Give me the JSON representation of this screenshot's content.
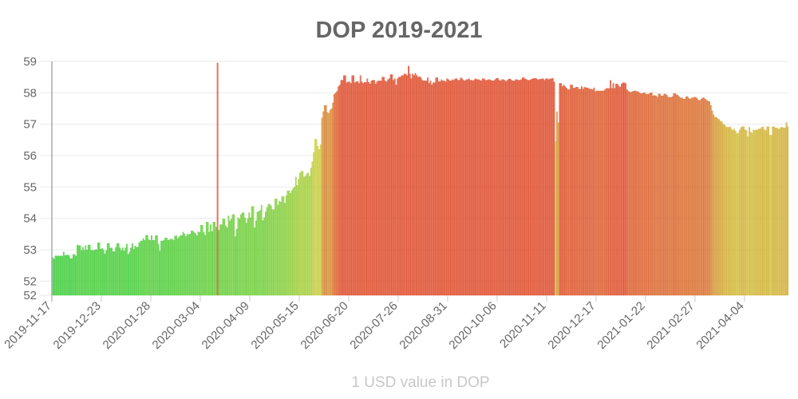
{
  "chart_data": {
    "type": "bar",
    "title": "DOP 2019-2021",
    "xlabel": "1 USD value in DOP",
    "ylabel": "",
    "ylim": [
      51.55,
      59
    ],
    "grid": true,
    "legend": "none",
    "y_tick_values": [
      59,
      58,
      57,
      56,
      55,
      54,
      53,
      52
    ],
    "y_min_label": "52",
    "x_start": "2019-11-17",
    "x_tick_labels": [
      "2019-11-17",
      "2019-12-23",
      "2020-01-28",
      "2020-03-04",
      "2020-04-09",
      "2020-05-15",
      "2020-06-20",
      "2020-07-26",
      "2020-08-31",
      "2020-10-06",
      "2020-11-11",
      "2020-12-17",
      "2021-01-22",
      "2021-02-27",
      "2021-04-04"
    ],
    "colors": {
      "low": "#33cc33",
      "mid": "#cccc33",
      "high": "#dd4422"
    },
    "values": [
      52.75,
      52.7,
      52.8,
      52.8,
      52.8,
      52.8,
      52.8,
      52.8,
      52.93,
      52.82,
      52.83,
      52.83,
      52.82,
      52.72,
      52.72,
      52.85,
      52.85,
      52.8,
      53.15,
      53.13,
      53.13,
      52.98,
      53.08,
      52.98,
      53.13,
      52.99,
      53.15,
      53.15,
      52.98,
      52.98,
      52.98,
      53.0,
      53.0,
      53.22,
      53.22,
      53.02,
      53.04,
      53.0,
      52.87,
      52.98,
      53.2,
      53.2,
      53.05,
      53.06,
      52.94,
      52.94,
      53.08,
      53.2,
      53.2,
      53.06,
      52.98,
      53.06,
      52.96,
      53.06,
      53.18,
      52.85,
      52.93,
      53.06,
      53.2,
      53.01,
      53.12,
      53.08,
      53.08,
      53.22,
      53.28,
      53.28,
      53.36,
      53.3,
      53.46,
      53.46,
      53.32,
      53.3,
      53.45,
      53.3,
      53.3,
      53.45,
      53.45,
      53.18,
      52.96,
      53.28,
      53.28,
      53.3,
      53.38,
      53.38,
      53.3,
      53.32,
      53.34,
      53.34,
      53.3,
      53.44,
      53.44,
      53.35,
      53.4,
      53.45,
      53.45,
      53.56,
      53.5,
      53.42,
      53.5,
      53.48,
      53.5,
      53.6,
      53.6,
      53.55,
      53.52,
      53.45,
      53.58,
      53.55,
      53.78,
      53.78,
      53.55,
      53.46,
      53.88,
      53.88,
      53.56,
      53.8,
      53.58,
      53.88,
      53.88,
      53.72,
      58.95,
      53.62,
      53.8,
      53.8,
      53.98,
      53.98,
      53.76,
      53.7,
      54.08,
      53.92,
      53.98,
      54.12,
      54.12,
      53.42,
      53.66,
      54.02,
      53.98,
      54.12,
      54.18,
      54.18,
      54.02,
      53.85,
      54.0,
      54.18,
      54.02,
      54.38,
      54.38,
      53.7,
      53.92,
      54.2,
      54.22,
      54.25,
      54.42,
      53.93,
      54.02,
      54.2,
      54.35,
      54.45,
      54.45,
      54.4,
      54.28,
      54.28,
      54.62,
      54.62,
      54.42,
      54.55,
      54.52,
      54.7,
      54.7,
      54.48,
      54.72,
      54.88,
      54.88,
      54.8,
      54.88,
      54.95,
      55.0,
      55.32,
      55.05,
      55.25,
      55.45,
      55.5,
      55.5,
      55.32,
      55.35,
      55.42,
      55.45,
      55.35,
      55.6,
      55.8,
      56.1,
      56.52,
      56.52,
      56.3,
      56.2,
      56.35,
      57.2,
      57.4,
      57.6,
      57.6,
      57.38,
      57.35,
      57.45,
      57.5,
      57.68,
      57.95,
      58.0,
      58.05,
      58.2,
      58.25,
      58.4,
      58.4,
      58.55,
      58.55,
      58.32,
      58.35,
      58.35,
      58.3,
      58.55,
      58.55,
      58.32,
      58.36,
      58.36,
      58.3,
      58.55,
      58.35,
      58.3,
      58.33,
      58.33,
      58.45,
      58.33,
      58.28,
      58.38,
      58.4,
      58.4,
      58.28,
      58.35,
      58.38,
      58.38,
      58.38,
      58.5,
      58.5,
      58.38,
      58.35,
      58.42,
      58.45,
      58.58,
      58.58,
      58.4,
      58.45,
      58.25,
      58.45,
      58.5,
      58.5,
      58.55,
      58.55,
      58.6,
      58.6,
      58.55,
      58.85,
      58.6,
      58.45,
      58.6,
      58.55,
      58.62,
      58.55,
      58.5,
      58.52,
      58.48,
      58.4,
      58.38,
      58.38,
      58.38,
      58.48,
      58.3,
      58.38,
      58.25,
      58.32,
      58.32,
      58.48,
      58.48,
      58.36,
      58.36,
      58.42,
      58.38,
      58.38,
      58.35,
      58.45,
      58.42,
      58.38,
      58.38,
      58.42,
      58.4,
      58.45,
      58.45,
      58.4,
      58.4,
      58.48,
      58.45,
      58.4,
      58.38,
      58.42,
      58.42,
      58.45,
      58.4,
      58.4,
      58.38,
      58.42,
      58.45,
      58.42,
      58.42,
      58.4,
      58.38,
      58.45,
      58.45,
      58.4,
      58.4,
      58.42,
      58.42,
      58.4,
      58.38,
      58.38,
      58.42,
      58.46,
      58.46,
      58.4,
      58.38,
      58.42,
      58.42,
      58.4,
      58.36,
      58.4,
      58.44,
      58.44,
      58.4,
      58.38,
      58.38,
      58.42,
      58.42,
      58.4,
      58.4,
      58.42,
      58.48,
      58.48,
      58.44,
      58.42,
      58.4,
      58.4,
      58.42,
      58.44,
      58.46,
      58.46,
      58.45,
      58.42,
      58.42,
      58.44,
      58.44,
      58.45,
      58.4,
      58.45,
      58.45,
      58.42,
      58.45,
      58.45,
      58.46,
      58.35,
      56.45,
      57.4,
      57.05,
      58.3,
      58.3,
      58.2,
      58.25,
      58.2,
      58.15,
      58.1,
      58.1,
      58.25,
      58.25,
      58.15,
      58.15,
      58.18,
      58.18,
      58.12,
      58.12,
      58.2,
      58.12,
      58.18,
      58.16,
      58.16,
      58.14,
      58.12,
      58.12,
      58.1,
      58.16,
      58.04,
      58.06,
      58.06,
      58.06,
      58.06,
      58.06,
      58.06,
      58.1,
      58.14,
      58.14,
      58.14,
      58.4,
      58.14,
      58.3,
      58.14,
      58.28,
      58.28,
      58.22,
      58.18,
      58.28,
      58.32,
      58.32,
      58.3,
      58.1,
      58.05,
      58.02,
      58.02,
      58.04,
      58.06,
      58.06,
      58.04,
      58.04,
      58.0,
      57.98,
      57.98,
      58.0,
      58.0,
      57.95,
      57.96,
      57.96,
      58.0,
      58.0,
      57.9,
      57.92,
      57.9,
      57.86,
      57.96,
      57.96,
      57.9,
      57.9,
      57.96,
      57.96,
      57.92,
      57.86,
      57.86,
      57.85,
      57.88,
      57.98,
      57.98,
      57.94,
      57.92,
      57.88,
      57.84,
      57.84,
      57.8,
      57.8,
      57.88,
      57.88,
      57.82,
      57.8,
      57.84,
      57.84,
      57.86,
      57.86,
      57.82,
      57.76,
      57.76,
      57.8,
      57.84,
      57.84,
      57.8,
      57.76,
      57.74,
      57.72,
      57.6,
      57.42,
      57.3,
      57.22,
      57.22,
      57.18,
      57.15,
      57.1,
      57.08,
      57.0,
      56.98,
      56.92,
      56.9,
      56.9,
      56.92,
      56.85,
      56.8,
      56.85,
      56.78,
      56.7,
      56.72,
      56.82,
      56.9,
      56.92,
      56.92,
      56.82,
      56.8,
      56.6,
      56.9,
      56.75,
      56.72,
      56.82,
      56.8,
      56.82,
      56.82,
      56.85,
      56.85,
      56.9,
      56.92,
      56.82,
      56.8,
      56.92,
      56.92,
      56.65,
      56.65,
      56.92,
      56.92,
      56.88,
      56.88,
      56.85,
      56.85,
      56.9,
      56.9,
      56.88,
      56.88,
      57.05,
      56.92
    ]
  }
}
